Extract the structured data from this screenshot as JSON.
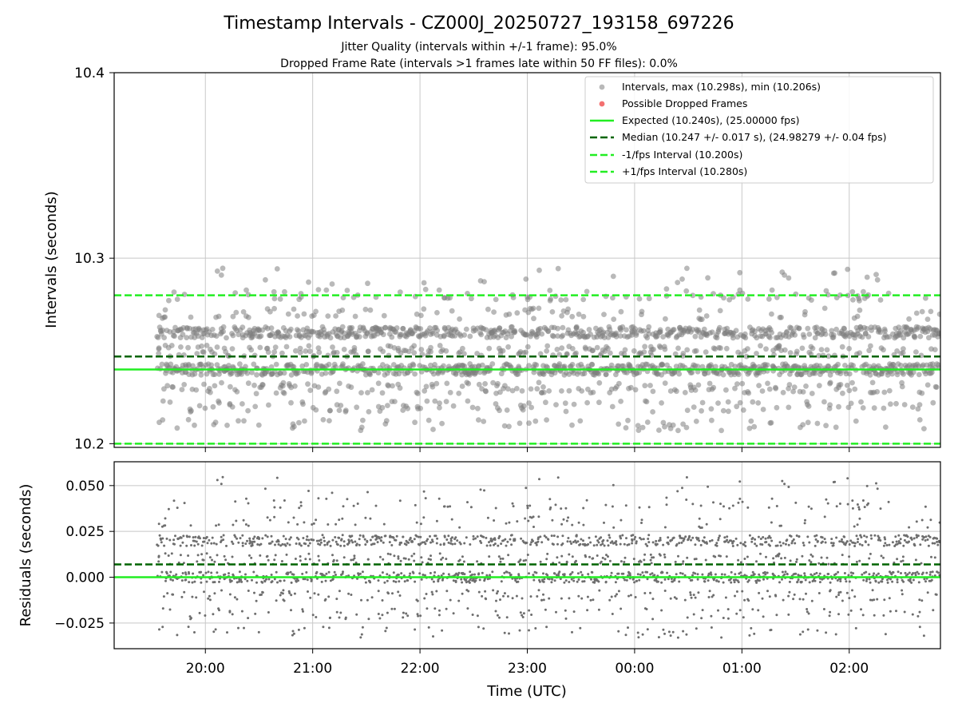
{
  "figure": {
    "title": "Timestamp Intervals - CZ000J_20250727_193158_697226",
    "subtitle_line1": "Jitter Quality (intervals within +/-1 frame): 95.0%",
    "subtitle_line2": "Dropped Frame Rate (intervals >1 frames late within 50 FF files): 0.0%"
  },
  "colors": {
    "intervals": "#808080",
    "dropped": "#ee3333",
    "expected": "#22ee22",
    "median": "#006400",
    "bounds": "#22ee22",
    "grid": "#c8c8c8"
  },
  "chart_data": [
    {
      "type": "scatter",
      "name": "intervals-panel",
      "x_axis": "time (UTC), hours since 00:00 of first day",
      "xlim": [
        -4.85,
        2.85
      ],
      "ylim": [
        10.198,
        10.4
      ],
      "xticks": [],
      "yticks": [
        "10.2",
        "10.3",
        "10.4"
      ],
      "ylabel": "Intervals (seconds)",
      "grid": true,
      "legend_position": "upper right",
      "x_start": -4.45,
      "x_end": 2.85,
      "n_points": 2100,
      "typical_levels": [
        10.24,
        10.26,
        10.25,
        10.23,
        10.22,
        10.28,
        10.21,
        10.27
      ],
      "y_max": 10.298,
      "y_min": 10.206,
      "reference_lines": [
        {
          "name": "Expected (10.240s), (25.00000 fps)",
          "y": 10.24,
          "style": "solid",
          "color_key": "expected"
        },
        {
          "name": "Median (10.247 +/- 0.017 s), (24.98279 +/- 0.04 fps)",
          "y": 10.247,
          "style": "dashed",
          "color_key": "median"
        },
        {
          "name": "-1/fps Interval (10.200s)",
          "y": 10.2,
          "style": "dashed",
          "color_key": "bounds"
        },
        {
          "name": "+1/fps Interval (10.280s)",
          "y": 10.28,
          "style": "dashed",
          "color_key": "bounds"
        }
      ],
      "series": [
        {
          "name": "Intervals, max (10.298s), min (10.206s)",
          "marker": "circle",
          "color_key": "intervals"
        },
        {
          "name": "Possible Dropped Frames",
          "marker": "circle",
          "color_key": "dropped",
          "count": 0
        }
      ]
    },
    {
      "type": "scatter",
      "name": "residuals-panel",
      "xlim": [
        -4.85,
        2.85
      ],
      "ylim": [
        -0.039,
        0.063
      ],
      "xticks": [
        "20:00",
        "21:00",
        "22:00",
        "23:00",
        "00:00",
        "01:00",
        "02:00"
      ],
      "yticks": [
        "−0.025",
        "0.000",
        "0.025",
        "0.050"
      ],
      "xlabel": "Time (UTC)",
      "ylabel": "Residuals (seconds)",
      "grid": true,
      "reference_lines": [
        {
          "y": 0.0,
          "style": "solid",
          "color_key": "expected"
        },
        {
          "y": 0.007,
          "style": "dashed",
          "color_key": "median"
        }
      ],
      "residual_definition": "interval - 10.240 s"
    }
  ]
}
